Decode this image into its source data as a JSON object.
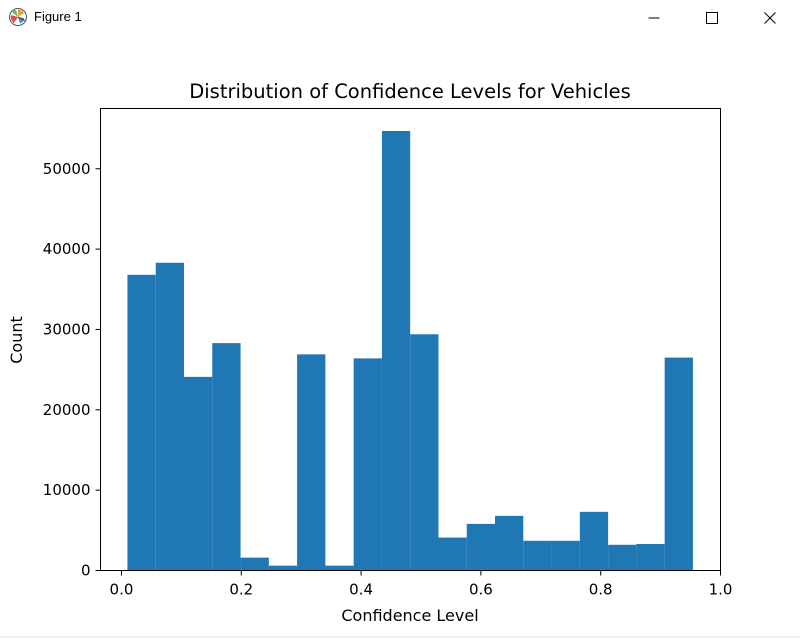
{
  "window": {
    "title": "Figure 1",
    "icon": "matplotlib-figure-icon",
    "controls": [
      "minimize-icon",
      "maximize-icon",
      "close-icon"
    ]
  },
  "chart_data": {
    "type": "bar",
    "title": "Distribution of Confidence Levels for Vehicles",
    "xlabel": "Confidence Level",
    "ylabel": "Count",
    "xlim": [
      -0.035,
      1.0
    ],
    "ylim": [
      0,
      57500
    ],
    "xticks": [
      "0.0",
      "0.2",
      "0.4",
      "0.6",
      "0.8",
      "1.0"
    ],
    "xtick_values": [
      0.0,
      0.2,
      0.4,
      0.6,
      0.8,
      1.0
    ],
    "yticks": [
      "0",
      "10000",
      "20000",
      "30000",
      "40000",
      "50000"
    ],
    "ytick_values": [
      0,
      10000,
      20000,
      30000,
      40000,
      50000
    ],
    "bin_start": 0.01,
    "bin_width": 0.0472,
    "values": [
      36800,
      38300,
      24100,
      28300,
      1600,
      600,
      26900,
      600,
      26400,
      54700,
      29400,
      4100,
      5800,
      6800,
      3700,
      3700,
      7300,
      3200,
      3300,
      26500
    ],
    "bar_color": "#1f77b4",
    "grid": false
  }
}
